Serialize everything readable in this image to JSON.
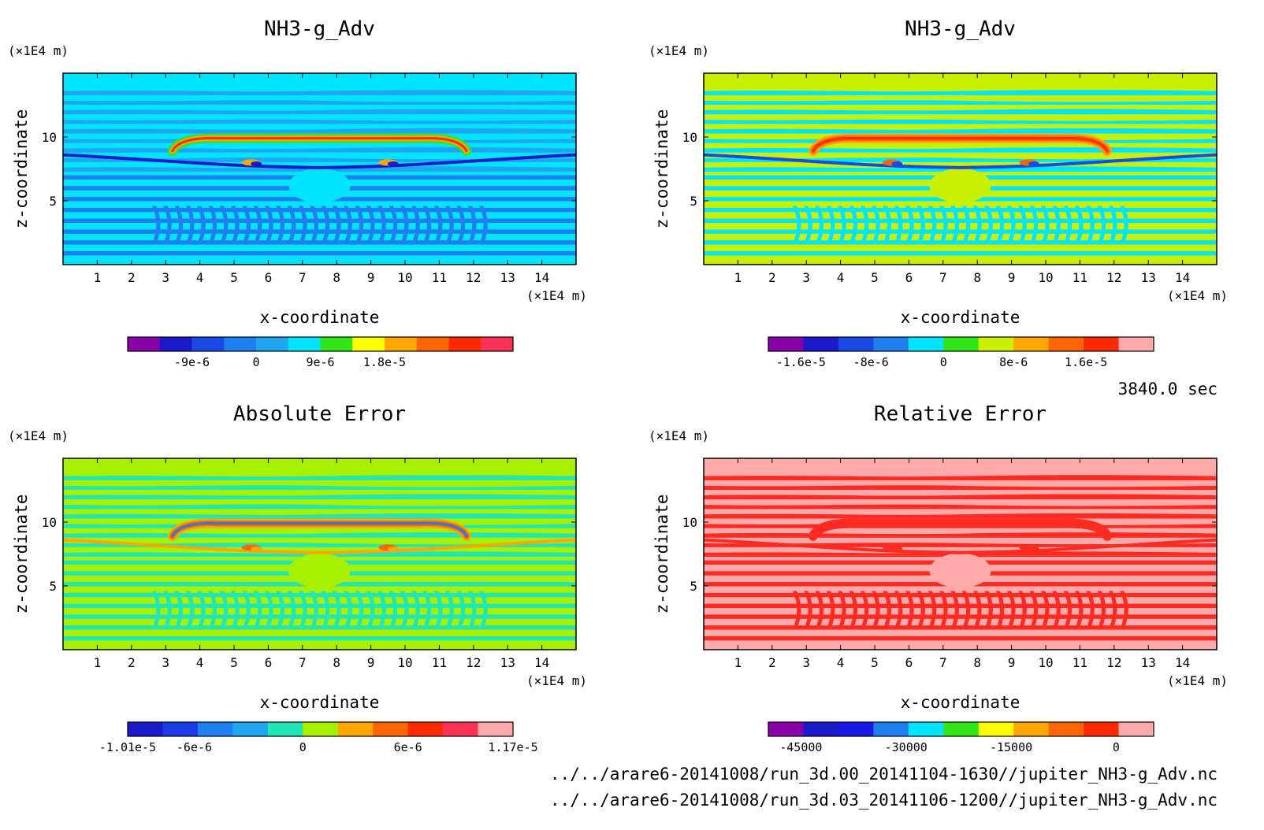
{
  "time_label": "3840.0 sec",
  "footer": {
    "line1": "../../arare6-20141008/run_3d.00_20141104-1630//jupiter_NH3-g_Adv.nc",
    "line2": "../../arare6-20141008/run_3d.03_20141106-1200//jupiter_NH3-g_Adv.nc"
  },
  "chart_data": [
    {
      "type": "heatmap",
      "title": "NH3-g_Adv",
      "xlabel": "x-coordinate",
      "ylabel": "z-coordinate",
      "x_unit": "(×1E4 m)",
      "y_unit": "(×1E4 m)",
      "xlim": [
        0,
        15
      ],
      "ylim": [
        0,
        15
      ],
      "x_ticks": [
        1,
        2,
        3,
        4,
        5,
        6,
        7,
        8,
        9,
        10,
        11,
        12,
        13,
        14
      ],
      "y_ticks": [
        5,
        10
      ],
      "colorbar": {
        "colors": [
          "#8800aa",
          "#1a1acc",
          "#1a4ae6",
          "#1f7fee",
          "#1fa6f0",
          "#00e5ff",
          "#33e61a",
          "#ffff00",
          "#ffa600",
          "#ff6600",
          "#ff2a00",
          "#ff3355"
        ],
        "tick_labels": [
          "-9e-6",
          "0",
          "9e-6",
          "1.8e-5"
        ],
        "tick_positions": [
          2,
          4,
          6,
          8
        ]
      },
      "field_colors": {
        "background": "#00e5ff",
        "base": "#1fa6f0",
        "band": "#1f7fee",
        "jet": "#1a1acc",
        "ridge_outer": "#33e61a",
        "ridge_mid": "#ffa600",
        "ridge_inner": "#ff2a00"
      }
    },
    {
      "type": "heatmap",
      "title": "NH3-g_Adv",
      "xlabel": "x-coordinate",
      "ylabel": "z-coordinate",
      "x_unit": "(×1E4 m)",
      "y_unit": "(×1E4 m)",
      "xlim": [
        0,
        15
      ],
      "ylim": [
        0,
        15
      ],
      "x_ticks": [
        1,
        2,
        3,
        4,
        5,
        6,
        7,
        8,
        9,
        10,
        11,
        12,
        13,
        14
      ],
      "y_ticks": [
        5,
        10
      ],
      "colorbar": {
        "colors": [
          "#8800aa",
          "#1a1acc",
          "#1a4ae6",
          "#1f7fee",
          "#00e5ff",
          "#33e61a",
          "#c8f000",
          "#ffa600",
          "#ff6600",
          "#ff2a00",
          "#ffaaaa"
        ],
        "tick_labels": [
          "-1.6e-5",
          "-8e-6",
          "0",
          "8e-6",
          "1.6e-5"
        ],
        "tick_positions": [
          0.93,
          2.93,
          5,
          7,
          9.07
        ]
      },
      "field_colors": {
        "background": "#c8f000",
        "base": "#00e5ff",
        "band": "#00e5ff",
        "jet": "#1a4ae6",
        "ridge_outer": "#ffa600",
        "ridge_mid": "#ff6600",
        "ridge_inner": "#ff2a00"
      }
    },
    {
      "type": "heatmap",
      "title": "Absolute Error",
      "xlabel": "x-coordinate",
      "ylabel": "z-coordinate",
      "x_unit": "(×1E4 m)",
      "y_unit": "(×1E4 m)",
      "xlim": [
        0,
        15
      ],
      "ylim": [
        0,
        15
      ],
      "x_ticks": [
        1,
        2,
        3,
        4,
        5,
        6,
        7,
        8,
        9,
        10,
        11,
        12,
        13,
        14
      ],
      "y_ticks": [
        5,
        10
      ],
      "colorbar": {
        "colors": [
          "#1a1acc",
          "#1a3ae6",
          "#1f7fee",
          "#1fa6f0",
          "#22e6b4",
          "#a6f000",
          "#ffa600",
          "#ff6600",
          "#ff2a00",
          "#ff3355",
          "#ffaaaa"
        ],
        "tick_labels": [
          "-1.01e-5",
          "-6e-6",
          "0",
          "6e-6",
          "1.17e-5"
        ],
        "tick_positions": [
          0,
          1.9,
          5,
          8,
          11
        ]
      },
      "field_colors": {
        "background": "#a6f000",
        "base": "#22e6b4",
        "band": "#22e6b4",
        "jet": "#ffa600",
        "ridge_outer": "#ffa600",
        "ridge_mid": "#ff6600",
        "ridge_inner": "#1f7fee"
      }
    },
    {
      "type": "heatmap",
      "title": "Relative Error",
      "xlabel": "x-coordinate",
      "ylabel": "z-coordinate",
      "x_unit": "(×1E4 m)",
      "y_unit": "(×1E4 m)",
      "xlim": [
        0,
        15
      ],
      "ylim": [
        0,
        15
      ],
      "x_ticks": [
        1,
        2,
        3,
        4,
        5,
        6,
        7,
        8,
        9,
        10,
        11,
        12,
        13,
        14
      ],
      "y_ticks": [
        5,
        10
      ],
      "colorbar": {
        "colors": [
          "#8800aa",
          "#1a1acc",
          "#1a1ae6",
          "#1f7fee",
          "#00e5ff",
          "#33e61a",
          "#ffff00",
          "#ffa600",
          "#ff6600",
          "#ff2a00",
          "#ffaaaa"
        ],
        "tick_labels": [
          "-45000",
          "-30000",
          "-15000",
          "0"
        ],
        "tick_positions": [
          0.93,
          3.93,
          6.93,
          9.93
        ]
      },
      "field_colors": {
        "background": "#ffaaaa",
        "base": "#ff2a22",
        "band": "#ff2a22",
        "jet": "#ff2a22",
        "ridge_outer": "#ff2a22",
        "ridge_mid": "#ff2a22",
        "ridge_inner": "#ff2a22"
      }
    }
  ]
}
